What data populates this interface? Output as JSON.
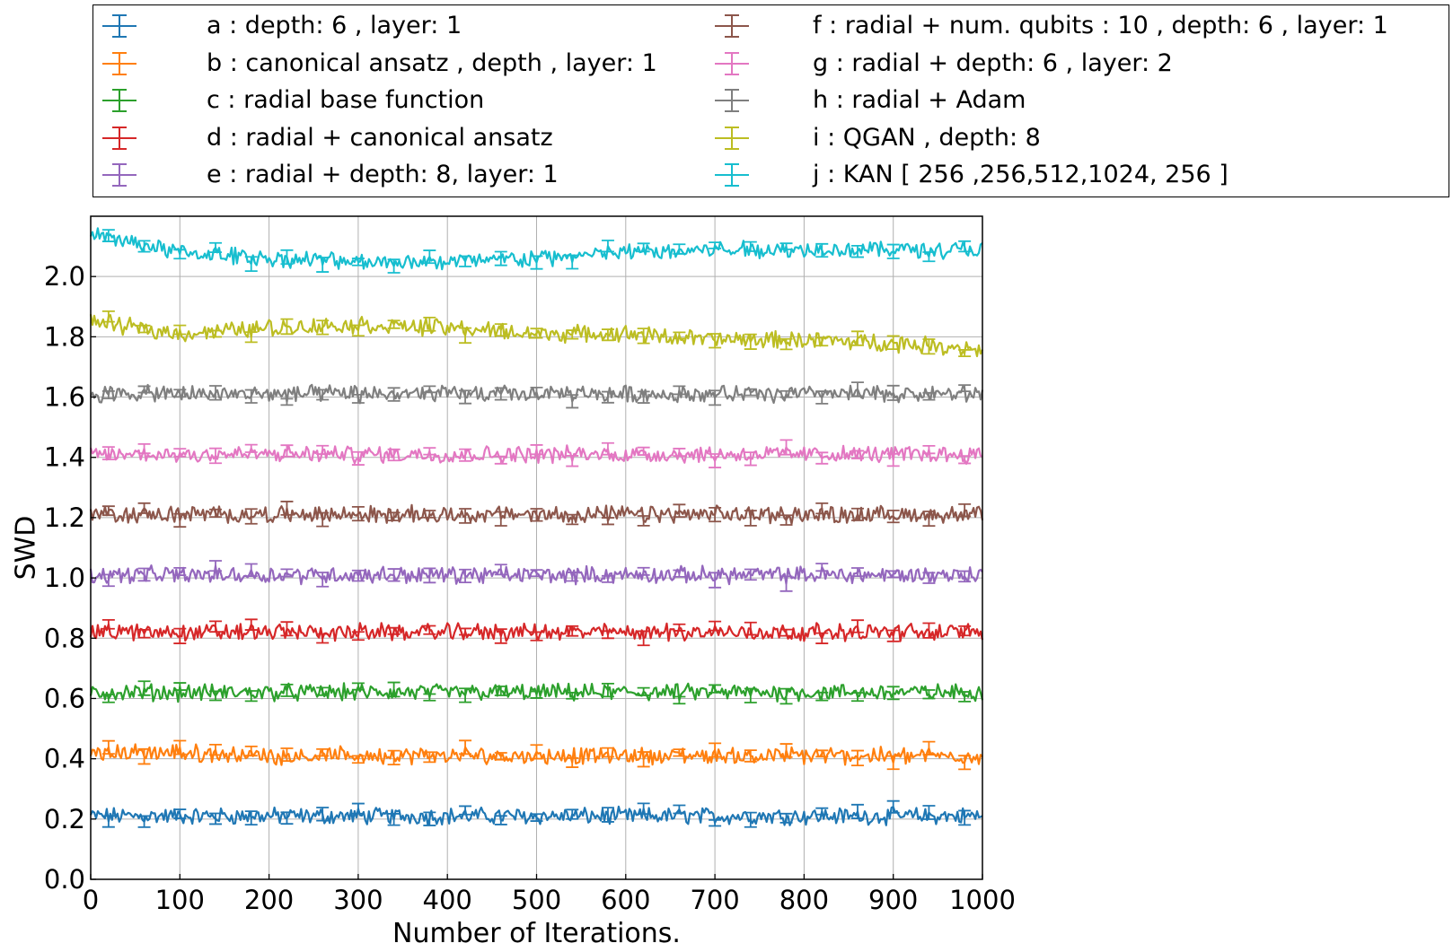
{
  "chart_data": {
    "type": "line",
    "xlabel": "Number of Iterations.",
    "ylabel": "SWD",
    "xlim": [
      0,
      1000
    ],
    "ylim": [
      0.0,
      2.2
    ],
    "xticks": [
      0,
      100,
      200,
      300,
      400,
      500,
      600,
      700,
      800,
      900,
      1000
    ],
    "xtick_labels": [
      "0",
      "100",
      "200",
      "300",
      "400",
      "500",
      "600",
      "700",
      "800",
      "900",
      "1000"
    ],
    "yticks": [
      0.0,
      0.2,
      0.4,
      0.6,
      0.8,
      1.0,
      1.2,
      1.4,
      1.6,
      1.8,
      2.0
    ],
    "ytick_labels": [
      "0.0",
      "0.2",
      "0.4",
      "0.6",
      "0.8",
      "1.0",
      "1.2",
      "1.4",
      "1.6",
      "1.8",
      "2.0"
    ],
    "grid": true,
    "legend_position": "top",
    "series": [
      {
        "name": "a : depth: 6 , layer: 1",
        "color": "#1f77b4",
        "x": [
          0,
          100,
          200,
          300,
          400,
          500,
          600,
          700,
          800,
          900,
          1000
        ],
        "y": [
          0.21,
          0.21,
          0.21,
          0.21,
          0.21,
          0.21,
          0.21,
          0.21,
          0.21,
          0.21,
          0.21
        ]
      },
      {
        "name": "b : canonical ansatz , depth , layer: 1",
        "color": "#ff7f0e",
        "x": [
          0,
          100,
          200,
          300,
          400,
          500,
          600,
          700,
          800,
          900,
          1000
        ],
        "y": [
          0.42,
          0.42,
          0.41,
          0.41,
          0.41,
          0.41,
          0.41,
          0.41,
          0.41,
          0.41,
          0.41
        ]
      },
      {
        "name": "c : radial base function",
        "color": "#2ca02c",
        "x": [
          0,
          100,
          200,
          300,
          400,
          500,
          600,
          700,
          800,
          900,
          1000
        ],
        "y": [
          0.62,
          0.62,
          0.62,
          0.62,
          0.62,
          0.62,
          0.62,
          0.62,
          0.62,
          0.62,
          0.62
        ]
      },
      {
        "name": "d : radial + canonical ansatz",
        "color": "#d62728",
        "x": [
          0,
          100,
          200,
          300,
          400,
          500,
          600,
          700,
          800,
          900,
          1000
        ],
        "y": [
          0.82,
          0.82,
          0.82,
          0.82,
          0.82,
          0.82,
          0.82,
          0.82,
          0.82,
          0.82,
          0.82
        ]
      },
      {
        "name": "e : radial + depth: 8, layer: 1",
        "color": "#9467bd",
        "x": [
          0,
          100,
          200,
          300,
          400,
          500,
          600,
          700,
          800,
          900,
          1000
        ],
        "y": [
          1.01,
          1.01,
          1.01,
          1.01,
          1.01,
          1.01,
          1.01,
          1.01,
          1.01,
          1.01,
          1.01
        ]
      },
      {
        "name": "f : radial + num. qubits : 10 , depth: 6 , layer: 1",
        "color": "#8c564b",
        "x": [
          0,
          100,
          200,
          300,
          400,
          500,
          600,
          700,
          800,
          900,
          1000
        ],
        "y": [
          1.21,
          1.21,
          1.21,
          1.21,
          1.21,
          1.21,
          1.21,
          1.21,
          1.21,
          1.21,
          1.21
        ]
      },
      {
        "name": "g : radial + depth: 6 , layer: 2",
        "color": "#e377c2",
        "x": [
          0,
          100,
          200,
          300,
          400,
          500,
          600,
          700,
          800,
          900,
          1000
        ],
        "y": [
          1.41,
          1.41,
          1.41,
          1.41,
          1.41,
          1.41,
          1.41,
          1.41,
          1.41,
          1.41,
          1.41
        ]
      },
      {
        "name": "h : radial + Adam",
        "color": "#7f7f7f",
        "x": [
          0,
          100,
          200,
          300,
          400,
          500,
          600,
          700,
          800,
          900,
          1000
        ],
        "y": [
          1.61,
          1.61,
          1.61,
          1.61,
          1.61,
          1.61,
          1.61,
          1.61,
          1.61,
          1.61,
          1.61
        ]
      },
      {
        "name": "i : QGAN , depth: 8",
        "color": "#bcbd22",
        "x": [
          0,
          100,
          200,
          300,
          400,
          500,
          600,
          700,
          800,
          900,
          1000
        ],
        "y": [
          1.85,
          1.81,
          1.83,
          1.84,
          1.83,
          1.81,
          1.81,
          1.79,
          1.79,
          1.78,
          1.76
        ]
      },
      {
        "name": "j : KAN [ 256 ,256,512,1024, 256 ]",
        "color": "#17becf",
        "x": [
          0,
          100,
          200,
          300,
          400,
          500,
          600,
          700,
          800,
          900,
          1000
        ],
        "y": [
          2.14,
          2.08,
          2.06,
          2.05,
          2.05,
          2.06,
          2.08,
          2.09,
          2.09,
          2.09,
          2.09
        ]
      }
    ]
  }
}
